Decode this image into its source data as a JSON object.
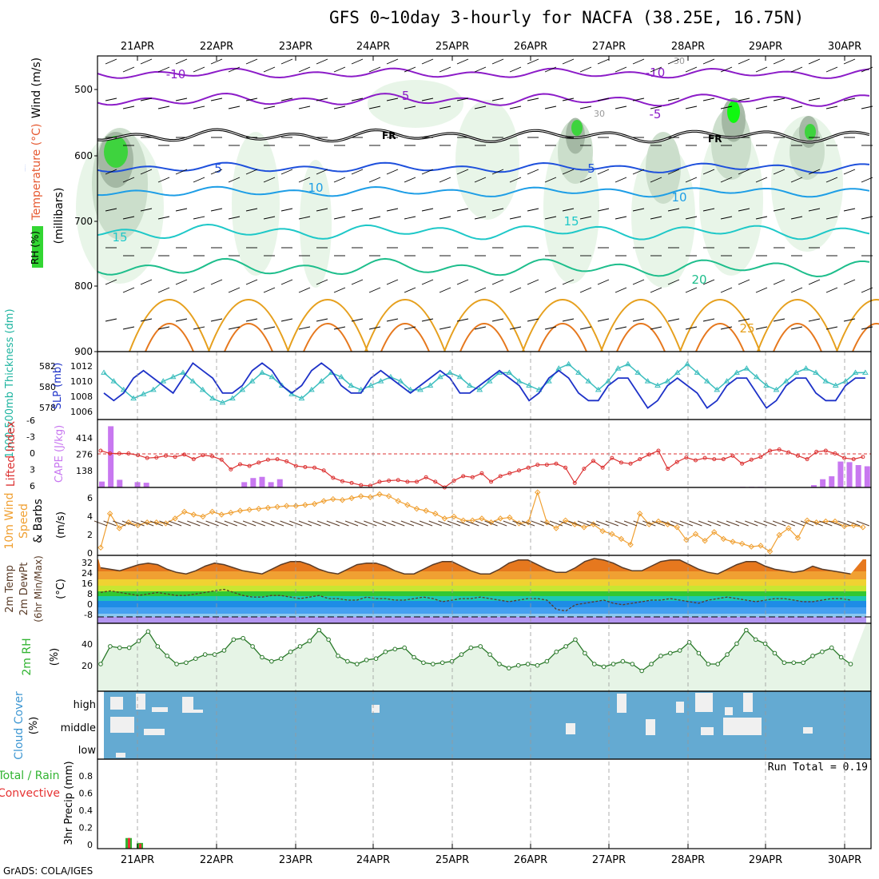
{
  "title": "GFS 0~10day 3-hourly for NACFA (38.25E, 16.75N)",
  "footer": "GrADS: COLA/IGES",
  "dates": [
    "21APR",
    "22APR",
    "23APR",
    "24APR",
    "25APR",
    "26APR",
    "27APR",
    "28APR",
    "29APR",
    "30APR"
  ],
  "colors": {
    "rh_light": "#e6f4e6",
    "rh_mid": "#c8dcc8",
    "rh_dark": "#a0b4a0",
    "rh_green": "#33d633",
    "rh_bright": "#00ff00",
    "temp_purple": "#8c1cc8",
    "temp_blue": "#1e50dc",
    "temp_cyan": "#1e9ee6",
    "temp_teal": "#1ec8c8",
    "temp_green": "#1ebe8c",
    "temp_orange": "#e6a01e",
    "temp_dorange": "#e6781e",
    "slp": "#1e32c8",
    "thick": "#3cbebe",
    "cape": "#c878f0",
    "li": "#dc3232",
    "wind": "#f0a032",
    "cloud": "#64aad2",
    "precip_total": "#32b432",
    "precip_conv": "#e63232"
  },
  "panels": {
    "upper": {
      "ylabel_parts": [
        "RH (%)",
        "Temperature (°C)",
        "Wind (m/s)"
      ],
      "ylabel_unit": "(millibars)",
      "y_ticks": [
        "500",
        "600",
        "700",
        "800",
        "900"
      ],
      "freezing_label": "FR",
      "contour_labels": [
        "-10",
        "-5",
        "-10",
        "-5",
        "5",
        "5",
        "10",
        "10",
        "15",
        "15",
        "20",
        "25",
        "30",
        "30"
      ]
    },
    "slp": {
      "ylabel_left": "1000-500mb Thickness (dm)",
      "ylabel_right": "SLP (mb)",
      "y_ticks_left": [
        "582",
        "580",
        "578"
      ],
      "y_ticks_right": [
        "1012",
        "1010",
        "1008",
        "1006"
      ]
    },
    "li": {
      "ylabel_left": "Lifted Index",
      "ylabel_right": "CAPE (J/kg)",
      "y_ticks_left": [
        "-6",
        "-3",
        "0",
        "3",
        "6"
      ],
      "y_ticks_right": [
        "414",
        "276",
        "138"
      ]
    },
    "wind": {
      "ylabel_parts": [
        "10m Wind",
        "Speed",
        "& Barbs"
      ],
      "ylabel_unit": "(m/s)",
      "y_ticks": [
        "6",
        "4",
        "2",
        "0"
      ]
    },
    "temp": {
      "ylabel_parts": [
        "2m Temp",
        "2m DewPt",
        "(6hr Min/Max)"
      ],
      "ylabel_unit": "(°C)",
      "y_ticks": [
        "32",
        "24",
        "16",
        "8",
        "0",
        "-8"
      ]
    },
    "rh": {
      "ylabel": "2m RH",
      "ylabel_unit": "(%)",
      "y_ticks": [
        "40",
        "20"
      ]
    },
    "cloud": {
      "ylabel": "Cloud Cover",
      "ylabel_unit": "(%)",
      "levels": [
        "high",
        "middle",
        "low"
      ]
    },
    "precip": {
      "ylabel_parts": [
        "Total / Rain",
        "Convective"
      ],
      "ylabel_right": "3hr Precip (mm)",
      "y_ticks": [
        "0.8",
        "0.6",
        "0.4",
        "0.2",
        "0"
      ],
      "run_total": "Run Total = 0.19"
    }
  },
  "chart_data": [
    {
      "type": "line",
      "title": "SLP (mb)",
      "x_step_hours": 3,
      "ylim": [
        1005,
        1013
      ],
      "series": [
        {
          "name": "SLP (mb)",
          "values": [
            1008,
            1007,
            1008,
            1010,
            1011,
            1010,
            1009,
            1008,
            1010,
            1012,
            1011,
            1010,
            1008,
            1008,
            1009,
            1011,
            1012,
            1011,
            1009,
            1008,
            1009,
            1011,
            1012,
            1011,
            1009,
            1008,
            1008,
            1010,
            1011,
            1010,
            1009,
            1008,
            1009,
            1010,
            1011,
            1010,
            1008,
            1008,
            1009,
            1010,
            1011,
            1010,
            1009,
            1007,
            1008,
            1010,
            1011,
            1010,
            1008,
            1007,
            1007,
            1009,
            1010,
            1010,
            1008,
            1006,
            1007,
            1009,
            1010,
            1009,
            1008,
            1006,
            1007,
            1009,
            1010,
            1010,
            1008,
            1006,
            1007,
            1009,
            1010,
            1010,
            1008,
            1007,
            1007,
            1009,
            1010,
            1010,
            1008,
            1007,
            1008
          ]
        },
        {
          "name": "1000-500mb Thickness (dm)",
          "values": [
            581,
            580,
            579,
            578,
            578.5,
            579,
            580,
            580.5,
            581,
            580,
            579,
            578,
            577.5,
            578,
            579,
            580,
            581,
            580.5,
            579.5,
            578.5,
            578,
            579,
            580,
            581,
            580.5,
            579.5,
            579,
            579.5,
            580,
            580.5,
            580,
            579,
            579,
            579.5,
            580.5,
            581,
            580.5,
            579.5,
            579,
            580,
            581,
            581,
            580,
            579.5,
            579,
            580,
            581.5,
            582,
            581,
            580,
            579,
            580,
            581.5,
            582,
            581,
            580,
            579.5,
            580,
            581,
            582,
            581,
            580,
            579,
            580,
            581,
            581.5,
            580.5,
            579.5,
            579,
            580,
            581,
            581.5,
            581,
            580,
            579.5,
            580,
            581,
            581,
            580.5,
            579.5,
            580
          ]
        }
      ]
    },
    {
      "type": "bar",
      "title": "CAPE (J/kg)",
      "x_step_hours": 3,
      "ylim": [
        0,
        550
      ],
      "values": [
        50,
        520,
        65,
        0,
        45,
        40,
        0,
        0,
        0,
        0,
        0,
        0,
        0,
        0,
        0,
        0,
        45,
        80,
        90,
        45,
        70,
        0,
        0,
        0,
        0,
        0,
        0,
        0,
        0,
        0,
        0,
        0,
        0,
        0,
        0,
        0,
        0,
        0,
        0,
        0,
        0,
        0,
        0,
        0,
        0,
        0,
        0,
        0,
        0,
        0,
        0,
        0,
        0,
        0,
        0,
        0,
        0,
        0,
        0,
        0,
        0,
        0,
        0,
        0,
        0,
        0,
        0,
        0,
        0,
        0,
        0,
        0,
        5,
        5,
        5,
        0,
        0,
        0,
        0,
        0,
        20,
        70,
        95,
        220,
        215,
        190,
        180,
        130,
        45,
        0,
        0,
        0,
        0,
        10,
        0,
        0,
        130,
        110,
        0,
        15,
        0,
        0,
        0,
        0,
        0
      ]
    },
    {
      "type": "line",
      "title": "Lifted Index",
      "x_step_hours": 3,
      "ylim": [
        -6,
        6
      ],
      "values": [
        -0.5,
        0,
        0,
        0,
        0.3,
        0.8,
        0.7,
        0.4,
        0.6,
        0.2,
        1.0,
        0.3,
        0.5,
        1.1,
        2.8,
        1.9,
        2.2,
        1.6,
        1.1,
        1.0,
        1.4,
        2.2,
        2.4,
        2.5,
        3.0,
        4.3,
        4.9,
        5.2,
        5.6,
        5.7,
        5.0,
        4.8,
        4.7,
        5.0,
        5.0,
        4.2,
        5.0,
        6.0,
        4.8,
        4.0,
        4.2,
        3.5,
        5.0,
        4.0,
        3.5,
        3.0,
        2.5,
        2.0,
        2.0,
        1.8,
        2.5,
        5.2,
        2.7,
        1.3,
        2.5,
        0.8,
        1.6,
        1.8,
        1.0,
        0.2,
        -0.5,
        2.7,
        1.5,
        0.7,
        1.2,
        0.8,
        1.0,
        1.0,
        0.4,
        1.8,
        1.1,
        0.6,
        -0.5,
        -0.7,
        -0.2,
        0.4,
        1.0,
        -0.3,
        -0.5,
        0,
        0.8,
        1.0,
        0.6,
        0.2,
        0.3,
        0.5
      ]
    },
    {
      "type": "line",
      "title": "10m Wind Speed (m/s)",
      "x_step_hours": 3,
      "ylim": [
        0,
        7
      ],
      "values": [
        0.8,
        4.3,
        2.8,
        3.4,
        3.1,
        3.4,
        3.4,
        3.3,
        3.8,
        4.5,
        4.2,
        4.0,
        4.5,
        4.2,
        4.4,
        4.6,
        4.7,
        4.8,
        4.9,
        5.0,
        5.1,
        5.1,
        5.2,
        5.3,
        5.6,
        5.8,
        5.7,
        5.9,
        6.1,
        6.0,
        6.3,
        6.1,
        5.6,
        5.2,
        4.8,
        4.6,
        4.3,
        3.8,
        4.0,
        3.6,
        3.6,
        3.8,
        3.4,
        3.8,
        3.9,
        3.3,
        3.4,
        6.5,
        3.4,
        2.8,
        3.6,
        3.2,
        2.9,
        3.2,
        2.5,
        2.2,
        1.7,
        1.1,
        4.3,
        3.2,
        3.5,
        3.2,
        2.9,
        1.6,
        2.2,
        1.5,
        2.4,
        1.7,
        1.4,
        1.2,
        0.9,
        1.0,
        0.4,
        2.1,
        2.8,
        1.8,
        3.6,
        3.4,
        3.5,
        3.5,
        3.0,
        3.1,
        2.9,
        3.6,
        4.1,
        3.0
      ]
    },
    {
      "type": "area",
      "title": "2m Temp (°C)",
      "x_step_hours": 3,
      "ylim": [
        -10,
        34
      ],
      "series": [
        {
          "name": "2m Temp",
          "values": [
            26,
            25,
            24,
            26,
            28,
            29,
            28,
            25,
            23,
            22,
            24,
            27,
            29,
            28,
            26,
            24,
            23,
            22,
            25,
            28,
            30,
            30,
            28,
            25,
            23,
            22,
            25,
            28,
            29,
            29,
            27,
            24,
            22,
            22,
            25,
            28,
            30,
            30,
            27,
            24,
            22,
            22,
            25,
            29,
            31,
            31,
            28,
            25,
            23,
            23,
            26,
            30,
            32,
            31,
            29,
            26,
            24,
            24,
            27,
            30,
            31,
            31,
            28,
            25,
            23,
            22,
            25,
            28,
            30,
            30,
            27,
            25,
            24,
            23,
            24,
            27,
            25,
            24,
            23,
            22
          ]
        },
        {
          "name": "2m DewPt",
          "values": [
            10,
            11,
            10,
            9,
            8,
            9,
            10,
            9,
            8,
            8,
            9,
            10,
            11,
            12,
            10,
            8,
            7,
            7,
            8,
            8,
            7,
            6,
            7,
            8,
            6,
            6,
            5,
            5,
            7,
            6,
            6,
            5,
            5,
            6,
            7,
            6,
            4,
            5,
            6,
            6,
            7,
            6,
            5,
            4,
            5,
            6,
            6,
            5,
            -1,
            -2,
            2,
            3,
            4,
            5,
            3,
            2,
            3,
            4,
            5,
            5,
            6,
            5,
            4,
            3,
            5,
            6,
            7,
            6,
            5,
            4,
            5,
            6,
            6,
            5,
            4,
            4,
            5,
            6,
            6,
            5
          ]
        }
      ]
    },
    {
      "type": "area",
      "title": "2m RH (%)",
      "x_step_hours": 3,
      "ylim": [
        0,
        50
      ],
      "values": [
        20,
        33,
        32,
        32,
        37,
        44,
        33,
        26,
        20,
        21,
        24,
        27,
        27,
        30,
        38,
        39,
        33,
        25,
        22,
        24,
        29,
        33,
        37,
        45,
        38,
        26,
        22,
        20,
        23,
        24,
        29,
        31,
        32,
        25,
        21,
        20,
        21,
        22,
        27,
        32,
        33,
        27,
        20,
        17,
        19,
        20,
        19,
        22,
        29,
        33,
        38,
        28,
        20,
        18,
        20,
        22,
        20,
        15,
        20,
        26,
        28,
        30,
        36,
        28,
        20,
        20,
        27,
        35,
        45,
        38,
        35,
        28,
        21,
        21,
        21,
        26,
        29,
        32,
        25,
        20
      ]
    },
    {
      "type": "bar",
      "title": "3hr Precip (mm)",
      "x_step_hours": 3,
      "ylim": [
        0,
        1.0
      ],
      "series": [
        {
          "name": "Total / Rain",
          "values": [
            0,
            0,
            0,
            0,
            0,
            0,
            0,
            0,
            0,
            0,
            0,
            0,
            0.13,
            0.07,
            0,
            0,
            0,
            0,
            0,
            0
          ]
        },
        {
          "name": "Convective",
          "values": [
            0,
            0,
            0,
            0,
            0,
            0,
            0,
            0,
            0,
            0,
            0,
            0,
            0.13,
            0.06,
            0,
            0,
            0,
            0,
            0,
            0
          ]
        }
      ]
    }
  ]
}
